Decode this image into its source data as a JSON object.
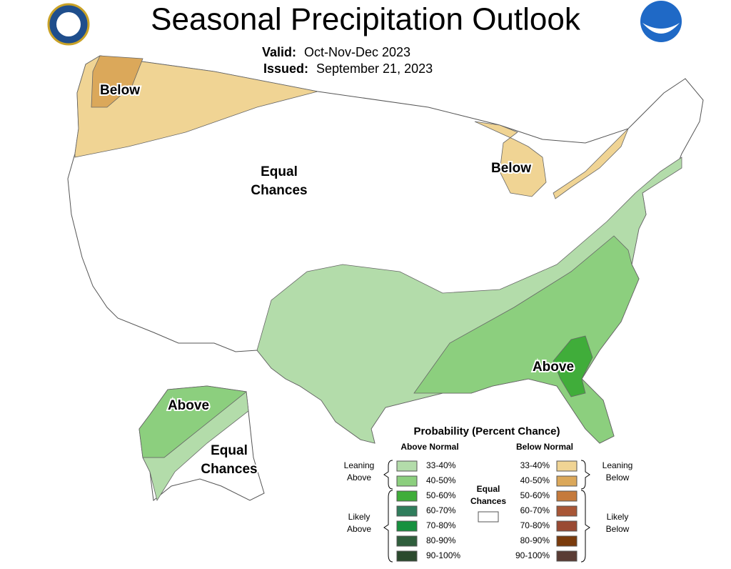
{
  "header": {
    "title": "Seasonal Precipitation Outlook",
    "valid_label": "Valid:",
    "valid": "Oct-Nov-Dec 2023",
    "issued_label": "Issued:",
    "issued": "September 21, 2023"
  },
  "map_labels": [
    {
      "lines": [
        "Below"
      ]
    },
    {
      "lines": [
        "Equal",
        "Chances"
      ]
    },
    {
      "lines": [
        "Below"
      ]
    },
    {
      "lines": [
        "Above"
      ]
    },
    {
      "lines": [
        "Above"
      ]
    },
    {
      "lines": [
        "Equal",
        "Chances"
      ]
    }
  ],
  "legend": {
    "title": "Probability (Percent Chance)",
    "above_header": "Above Normal",
    "below_header": "Below Normal",
    "above": [
      {
        "label": "33-40%",
        "color": "#b3dcaa"
      },
      {
        "label": "40-50%",
        "color": "#8ccf7e"
      },
      {
        "label": "50-60%",
        "color": "#40ad3a"
      },
      {
        "label": "60-70%",
        "color": "#2f7d5c"
      },
      {
        "label": "70-80%",
        "color": "#17913f"
      },
      {
        "label": "80-90%",
        "color": "#2f5e3c"
      },
      {
        "label": "90-100%",
        "color": "#2b4a2d"
      }
    ],
    "below": [
      {
        "label": "33-40%",
        "color": "#f0d494"
      },
      {
        "label": "40-50%",
        "color": "#dba85a"
      },
      {
        "label": "50-60%",
        "color": "#c57a3c"
      },
      {
        "label": "60-70%",
        "color": "#a85636"
      },
      {
        "label": "70-80%",
        "color": "#9a4a33"
      },
      {
        "label": "80-90%",
        "color": "#7a3b0c"
      },
      {
        "label": "90-100%",
        "color": "#5a3c34"
      }
    ],
    "leaning_above": [
      "Leaning",
      "Above"
    ],
    "likely_above": [
      "Likely",
      "Above"
    ],
    "leaning_below": [
      "Leaning",
      "Below"
    ],
    "likely_below": [
      "Likely",
      "Below"
    ],
    "equal": [
      "Equal",
      "Chances"
    ]
  }
}
